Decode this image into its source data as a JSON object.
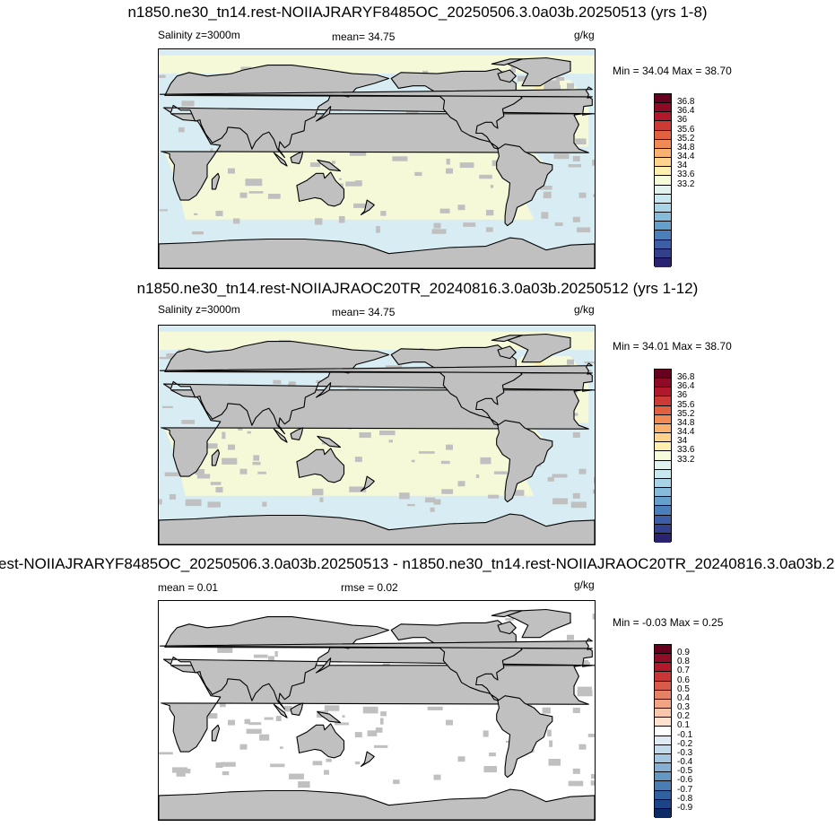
{
  "panels": [
    {
      "title": "n1850.ne30_tn14.rest-NOIIAJRARYF8485OC_20250506.3.0a03b.20250513 (yrs 1-8)",
      "left_label": "Salinity z=3000m",
      "center_label": "mean=  34.75",
      "units": "g/kg",
      "minmax": "Min =  34.04 Max =  38.70",
      "colorbar": {
        "labels": [
          "36.8",
          "36.4",
          "36",
          "35.6",
          "35.2",
          "34.8",
          "34.4",
          "34",
          "33.6",
          "33.2"
        ],
        "colors": [
          "#67001f",
          "#8f0a26",
          "#b2182b",
          "#cc3a35",
          "#e0603f",
          "#f08b55",
          "#f8b16f",
          "#fdd38e",
          "#fff0b0",
          "#f6fbd9",
          "#e2f2ee",
          "#c9e7ef",
          "#a9d4e6",
          "#86bbd9",
          "#659fcb",
          "#4a7fb9",
          "#3b5ea4",
          "#33408c",
          "#2a2470"
        ]
      },
      "map_fill": "light-blue ocean, pale-yellow Atlantic"
    },
    {
      "title": "n1850.ne30_tn14.rest-NOIIAJRAOC20TR_20240816.3.0a03b.20250512 (yrs 1-12)",
      "left_label": "Salinity z=3000m",
      "center_label": "mean=  34.75",
      "units": "g/kg",
      "minmax": "Min =  34.01 Max =  38.70",
      "colorbar": {
        "labels": [
          "36.8",
          "36.4",
          "36",
          "35.6",
          "35.2",
          "34.8",
          "34.4",
          "34",
          "33.6",
          "33.2"
        ],
        "colors": [
          "#67001f",
          "#8f0a26",
          "#b2182b",
          "#cc3a35",
          "#e0603f",
          "#f08b55",
          "#f8b16f",
          "#fdd38e",
          "#fff0b0",
          "#f6fbd9",
          "#e2f2ee",
          "#c9e7ef",
          "#a9d4e6",
          "#86bbd9",
          "#659fcb",
          "#4a7fb9",
          "#3b5ea4",
          "#33408c",
          "#2a2470"
        ]
      },
      "map_fill": "light-blue ocean, pale-yellow Atlantic"
    },
    {
      "title": "est-NOIIAJRARYF8485OC_20250506.3.0a03b.20250513 - n1850.ne30_tn14.rest-NOIIAJRAOC20TR_20240816.3.0a03b.20",
      "left_label": "mean =   0.01",
      "center_label": "rmse =   0.02",
      "units": "g/kg",
      "minmax": "Min =  -0.03 Max =   0.25",
      "colorbar": {
        "labels": [
          "0.9",
          "0.8",
          "0.7",
          "0.6",
          "0.5",
          "0.4",
          "0.3",
          "0.2",
          "0.1",
          "-0.1",
          "-0.2",
          "-0.3",
          "-0.4",
          "-0.5",
          "-0.6",
          "-0.7",
          "-0.8",
          "-0.9"
        ],
        "colors": [
          "#67001f",
          "#900d27",
          "#b0182c",
          "#c73537",
          "#d75a4a",
          "#e58165",
          "#f0a483",
          "#f8c6aa",
          "#fde2d0",
          "#ffffff",
          "#dfeaf3",
          "#c4d9ea",
          "#a6c6e0",
          "#86b0d3",
          "#6597c3",
          "#4a7db2",
          "#31609f",
          "#1d4486",
          "#0c2b66"
        ]
      },
      "map_fill": "white ocean (near-zero difference)"
    }
  ]
}
